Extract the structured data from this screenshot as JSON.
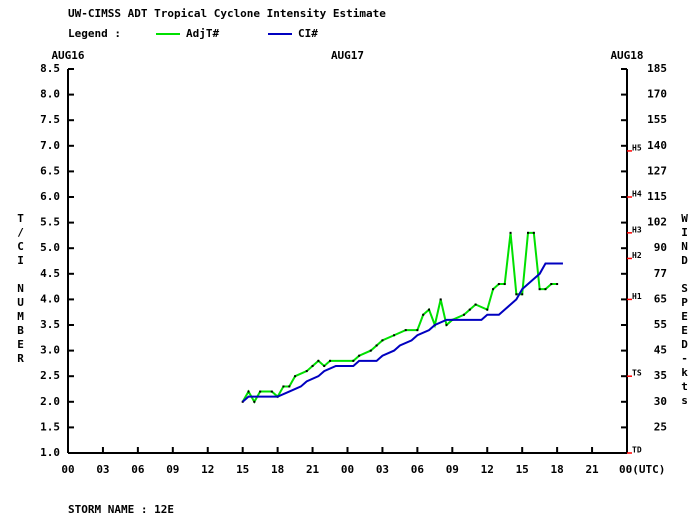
{
  "chart_data": {
    "type": "line",
    "title": "UW-CIMSS ADT Tropical Cyclone Intensity Estimate",
    "legend_label": "Legend :",
    "y_label": "T/CI NUMBER",
    "y2_label": "WIND SPEED-kts",
    "footer": "STORM NAME : 12E",
    "xlim": [
      0,
      48
    ],
    "xticks": [
      {
        "value": 0,
        "label": "00"
      },
      {
        "value": 3,
        "label": "03"
      },
      {
        "value": 6,
        "label": "06"
      },
      {
        "value": 9,
        "label": "09"
      },
      12,
      15,
      18,
      21,
      {
        "value": 24,
        "label": "00"
      },
      {
        "value": 27,
        "label": "03"
      },
      {
        "value": 30,
        "label": "06"
      },
      {
        "value": 33,
        "label": "09"
      },
      {
        "value": 36,
        "label": "12"
      },
      {
        "value": 39,
        "label": "15"
      },
      {
        "value": 42,
        "label": "18"
      },
      {
        "value": 45,
        "label": "21"
      },
      {
        "value": 48,
        "label": "00(UTC)"
      }
    ],
    "date_labels": [
      {
        "value": 0,
        "label": "AUG16"
      },
      {
        "value": 24,
        "label": "AUG17"
      },
      {
        "value": 48,
        "label": "AUG18"
      }
    ],
    "ylim": [
      1,
      8.5
    ],
    "yticks": [
      8.5,
      {
        "value": 8,
        "label": "8.0"
      },
      7.5,
      {
        "value": 7,
        "label": "7.0"
      },
      6.5,
      {
        "value": 6,
        "label": "6.0"
      },
      5.5,
      {
        "value": 5,
        "label": "5.0"
      },
      4.5,
      {
        "value": 4,
        "label": "4.0"
      },
      3.5,
      {
        "value": 3,
        "label": "3.0"
      },
      2.5,
      {
        "value": 2,
        "label": "2.0"
      },
      1.5,
      {
        "value": 1,
        "label": "1.0"
      }
    ],
    "y2ticks": [
      185,
      170,
      155,
      140,
      127,
      115,
      102,
      90,
      77,
      65,
      55,
      45,
      35,
      30,
      25
    ],
    "intensity_markers": [
      {
        "label": "H5",
        "value": 6.9
      },
      {
        "label": "H4",
        "value": 6.0
      },
      {
        "label": "H3",
        "value": 5.3
      },
      {
        "label": "H2",
        "value": 4.8
      },
      {
        "label": "H1",
        "value": 4.0
      },
      {
        "label": "TS",
        "value": 2.5
      },
      {
        "label": "TD",
        "value": 1.0
      }
    ],
    "marker_color": "#ff0000",
    "series": [
      {
        "name": "AdjT#",
        "color": "#00e000",
        "x": [
          15,
          15.5,
          16,
          16.5,
          17.5,
          18,
          18.5,
          19,
          19.5,
          20.5,
          21,
          21.5,
          22,
          22.5,
          24.5,
          25,
          26,
          26.5,
          27,
          28,
          29,
          30,
          30.5,
          31,
          31.5,
          32,
          32.5,
          33,
          34,
          34.5,
          35,
          36,
          36.5,
          37,
          37.5,
          38,
          38.5,
          39,
          39.5,
          40,
          40.5,
          41,
          41.5,
          42
        ],
        "values": [
          2.0,
          2.2,
          2.0,
          2.2,
          2.2,
          2.1,
          2.3,
          2.3,
          2.5,
          2.6,
          2.7,
          2.8,
          2.7,
          2.8,
          2.8,
          2.9,
          3.0,
          3.1,
          3.2,
          3.3,
          3.4,
          3.4,
          3.7,
          3.8,
          3.5,
          4.0,
          3.5,
          3.6,
          3.7,
          3.8,
          3.9,
          3.8,
          4.2,
          4.3,
          4.3,
          5.3,
          4.1,
          4.1,
          5.3,
          5.3,
          4.2,
          4.2,
          4.3,
          4.3
        ]
      },
      {
        "name": "CI#",
        "color": "#0000c0",
        "x": [
          15,
          15.5,
          18,
          19,
          20,
          20.5,
          21.5,
          22,
          23,
          24.5,
          25,
          26.5,
          27,
          28,
          28.5,
          29.5,
          30,
          31,
          31.5,
          32.5,
          35.5,
          36,
          37,
          37.5,
          38,
          38.5,
          39,
          39.5,
          40,
          40.5,
          41,
          42.5
        ],
        "values": [
          2.0,
          2.1,
          2.1,
          2.2,
          2.3,
          2.4,
          2.5,
          2.6,
          2.7,
          2.7,
          2.8,
          2.8,
          2.9,
          3.0,
          3.1,
          3.2,
          3.3,
          3.4,
          3.5,
          3.6,
          3.6,
          3.7,
          3.7,
          3.8,
          3.9,
          4.0,
          4.2,
          4.3,
          4.4,
          4.5,
          4.7,
          4.7
        ]
      }
    ]
  }
}
